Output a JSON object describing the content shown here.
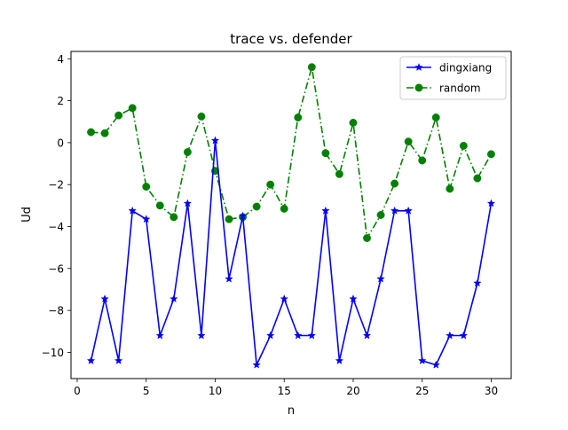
{
  "chart_data": {
    "type": "line",
    "title": "trace vs. defender",
    "xlabel": "n",
    "ylabel": "Ud",
    "xlim": [
      -0.45,
      31.45
    ],
    "ylim": [
      -11.25,
      4.35
    ],
    "xticks": [
      0,
      5,
      10,
      15,
      20,
      25,
      30
    ],
    "yticks": [
      -10,
      -8,
      -6,
      -4,
      -2,
      0,
      2,
      4
    ],
    "ytick_labels": [
      "−10",
      "−8",
      "−6",
      "−4",
      "−2",
      "0",
      "2",
      "4"
    ],
    "grid": false,
    "legend_position": "top-right",
    "x": [
      1,
      2,
      3,
      4,
      5,
      6,
      7,
      8,
      9,
      10,
      11,
      12,
      13,
      14,
      15,
      16,
      17,
      18,
      19,
      20,
      21,
      22,
      23,
      24,
      25,
      26,
      27,
      28,
      29,
      30
    ],
    "series": [
      {
        "name": "dingxiang",
        "color": "#0000ff",
        "line_style": "solid",
        "marker": "star",
        "values": [
          -10.4,
          -7.45,
          -10.4,
          -3.25,
          -3.65,
          -9.2,
          -7.45,
          -2.9,
          -9.2,
          0.1,
          -6.5,
          -3.5,
          -10.6,
          -9.2,
          -7.45,
          -9.2,
          -9.2,
          -3.25,
          -10.4,
          -7.45,
          -9.2,
          -6.5,
          -3.25,
          -3.25,
          -10.4,
          -10.6,
          -9.2,
          -9.2,
          -6.7,
          -2.9
        ]
      },
      {
        "name": "random",
        "color": "#008000",
        "line_style": "dashdot",
        "marker": "circle",
        "values": [
          0.5,
          0.45,
          1.3,
          1.65,
          -2.1,
          -3.0,
          -3.55,
          -0.45,
          1.25,
          -1.35,
          -3.65,
          -3.55,
          -3.05,
          -2.0,
          -3.15,
          1.2,
          3.6,
          -0.5,
          -1.5,
          0.95,
          -4.55,
          -3.45,
          -1.95,
          0.05,
          -0.85,
          1.2,
          -2.2,
          -0.15,
          -1.7,
          -0.55
        ]
      }
    ]
  }
}
